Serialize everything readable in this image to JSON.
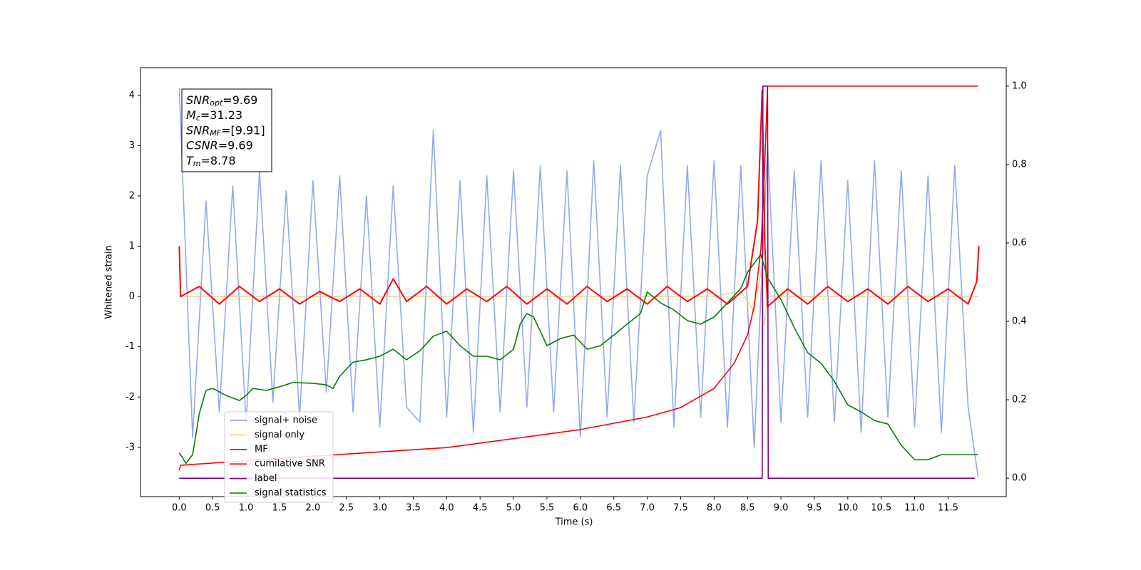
{
  "chart_data": {
    "type": "line",
    "xlabel": "Time (s)",
    "ylabel": "Whitened strain",
    "xlim": [
      -0.58,
      12.37
    ],
    "ylim": [
      -3.98,
      4.55
    ],
    "y2lim": [
      -0.047,
      1.047
    ],
    "xticks": [
      {
        "value": 0,
        "label": "0.0"
      },
      0.5,
      {
        "value": 1,
        "label": "1.0"
      },
      1.5,
      {
        "value": 2,
        "label": "2.0"
      },
      2.5,
      {
        "value": 3,
        "label": "3.0"
      },
      3.5,
      {
        "value": 4,
        "label": "4.0"
      },
      4.5,
      {
        "value": 5,
        "label": "5.0"
      },
      5.5,
      {
        "value": 6,
        "label": "6.0"
      },
      6.5,
      {
        "value": 7,
        "label": "7.0"
      },
      7.5,
      {
        "value": 8,
        "label": "8.0"
      },
      8.5,
      {
        "value": 9,
        "label": "9.0"
      },
      9.5,
      {
        "value": 10,
        "label": "10.0"
      },
      10.5,
      {
        "value": 11,
        "label": "11.0"
      },
      11.5
    ],
    "yticks": [
      -3,
      -2,
      -1,
      0,
      1,
      2,
      3,
      4
    ],
    "y2ticks": [
      {
        "value": 0,
        "label": "0.0"
      },
      0.2,
      0.4,
      0.6,
      0.8,
      {
        "value": 1,
        "label": "1.0"
      }
    ],
    "annotation": [
      {
        "main": "SNR",
        "sub": "opt",
        "rest": "=9.69"
      },
      {
        "main": "M",
        "sub": "c",
        "rest": "=31.23"
      },
      {
        "main": "SNR",
        "sub": "MF",
        "rest": "=[9.91]"
      },
      {
        "main": "CSNR",
        "rest": "=9.69"
      },
      {
        "main": "T",
        "sub": "m",
        "rest": "=8.78"
      }
    ],
    "series": [
      {
        "name": "signal+ noise",
        "color": "#7893e8",
        "x": [
          0,
          0.2,
          0.4,
          0.6,
          0.8,
          1.0,
          1.2,
          1.4,
          1.6,
          1.8,
          2.0,
          2.2,
          2.4,
          2.6,
          2.8,
          3.0,
          3.2,
          3.4,
          3.6,
          3.8,
          4.0,
          4.2,
          4.4,
          4.6,
          4.8,
          5.0,
          5.2,
          5.4,
          5.6,
          5.8,
          6.0,
          6.2,
          6.4,
          6.6,
          6.8,
          7.0,
          7.2,
          7.4,
          7.6,
          7.8,
          8.0,
          8.2,
          8.4,
          8.6,
          8.8,
          9.0,
          9.2,
          9.4,
          9.6,
          9.8,
          10.0,
          10.2,
          10.4,
          10.6,
          10.8,
          11.0,
          11.2,
          11.4,
          11.6,
          11.8,
          11.95
        ],
        "values": [
          4.15,
          -2.8,
          1.9,
          -2.3,
          2.2,
          -2.5,
          2.5,
          -2.1,
          2.1,
          -2.4,
          2.3,
          -1.9,
          2.4,
          -2.3,
          2.0,
          -2.6,
          2.2,
          -2.2,
          -2.5,
          3.3,
          -2.4,
          2.3,
          -2.7,
          2.4,
          -2.3,
          2.5,
          -2.2,
          2.6,
          -2.3,
          2.5,
          -2.8,
          2.7,
          -2.4,
          2.6,
          -2.5,
          2.4,
          3.3,
          -2.6,
          2.6,
          -2.4,
          2.7,
          -2.6,
          2.6,
          -3.0,
          3.0,
          -2.5,
          2.5,
          -2.4,
          2.7,
          -2.5,
          2.3,
          -2.7,
          2.7,
          -2.4,
          2.5,
          -2.6,
          2.4,
          -2.7,
          2.6,
          -2.2,
          -3.6
        ]
      },
      {
        "name": "signal only",
        "color": "#f5c97a",
        "x": [
          0,
          8.0,
          8.4,
          8.6,
          8.7,
          8.75,
          8.8,
          11.95
        ],
        "values": [
          0,
          0,
          0.1,
          -0.3,
          0.5,
          -0.6,
          0,
          0
        ]
      },
      {
        "name": "MF",
        "color": "#ff0000",
        "x": [
          0,
          0.02,
          0.3,
          0.6,
          0.9,
          1.2,
          1.5,
          1.8,
          2.1,
          2.4,
          2.7,
          3.0,
          3.2,
          3.4,
          3.7,
          4.0,
          4.3,
          4.6,
          4.9,
          5.2,
          5.5,
          5.8,
          6.1,
          6.4,
          6.7,
          7.0,
          7.3,
          7.6,
          7.9,
          8.2,
          8.5,
          8.65,
          8.72,
          8.76,
          8.8,
          9.1,
          9.4,
          9.7,
          10.0,
          10.3,
          10.6,
          10.9,
          11.2,
          11.5,
          11.8,
          11.93,
          11.96
        ],
        "values": [
          1.0,
          0.0,
          0.2,
          -0.15,
          0.2,
          -0.1,
          0.15,
          -0.15,
          0.1,
          -0.1,
          0.15,
          -0.15,
          0.35,
          -0.1,
          0.2,
          -0.15,
          0.15,
          -0.1,
          0.2,
          -0.15,
          0.15,
          -0.15,
          0.2,
          -0.1,
          0.15,
          -0.15,
          0.2,
          -0.1,
          0.15,
          -0.15,
          0.2,
          1.5,
          4.1,
          1.0,
          -0.2,
          0.15,
          -0.15,
          0.2,
          -0.1,
          0.15,
          -0.15,
          0.2,
          -0.1,
          0.15,
          -0.15,
          0.3,
          1.0
        ]
      },
      {
        "name": "cumilative SNR",
        "color": "#ff0000",
        "axis": "y2",
        "x": [
          0,
          0.02,
          2,
          4,
          6,
          7,
          7.5,
          8,
          8.3,
          8.5,
          8.6,
          8.7,
          8.75,
          8.8,
          11.95
        ],
        "values": [
          0.02,
          0.033,
          0.056,
          0.078,
          0.124,
          0.156,
          0.18,
          0.229,
          0.293,
          0.365,
          0.438,
          0.584,
          0.765,
          1.0,
          1.0
        ]
      },
      {
        "name": "label",
        "color": "#800080",
        "axis": "y2",
        "x": [
          0,
          8.72,
          8.73,
          8.8,
          8.81,
          11.9
        ],
        "values": [
          0,
          0,
          1,
          1,
          0,
          0
        ]
      },
      {
        "name": "signal statistics",
        "color": "#008000",
        "axis": "y2",
        "x": [
          0,
          0.1,
          0.2,
          0.3,
          0.4,
          0.5,
          0.7,
          0.9,
          1.0,
          1.1,
          1.3,
          1.5,
          1.7,
          2.0,
          2.2,
          2.3,
          2.4,
          2.6,
          2.8,
          3.0,
          3.2,
          3.4,
          3.6,
          3.8,
          4.0,
          4.2,
          4.4,
          4.6,
          4.8,
          5.0,
          5.1,
          5.2,
          5.3,
          5.4,
          5.5,
          5.7,
          5.9,
          6.1,
          6.3,
          6.5,
          6.7,
          6.9,
          7.0,
          7.2,
          7.4,
          7.6,
          7.8,
          8.0,
          8.2,
          8.4,
          8.5,
          8.7,
          8.8,
          9.0,
          9.2,
          9.4,
          9.6,
          9.8,
          10.0,
          10.2,
          10.4,
          10.6,
          10.8,
          11.0,
          11.2,
          11.4,
          11.7,
          11.95
        ],
        "values": [
          0.065,
          0.038,
          0.06,
          0.165,
          0.224,
          0.229,
          0.211,
          0.198,
          0.211,
          0.229,
          0.224,
          0.233,
          0.244,
          0.242,
          0.238,
          0.229,
          0.26,
          0.296,
          0.302,
          0.311,
          0.329,
          0.302,
          0.325,
          0.362,
          0.375,
          0.338,
          0.311,
          0.311,
          0.302,
          0.329,
          0.393,
          0.42,
          0.411,
          0.375,
          0.338,
          0.356,
          0.365,
          0.329,
          0.338,
          0.365,
          0.393,
          0.42,
          0.475,
          0.447,
          0.429,
          0.402,
          0.393,
          0.411,
          0.447,
          0.484,
          0.525,
          0.571,
          0.511,
          0.456,
          0.384,
          0.32,
          0.293,
          0.247,
          0.187,
          0.169,
          0.147,
          0.138,
          0.084,
          0.047,
          0.047,
          0.06,
          0.06,
          0.06
        ]
      }
    ]
  }
}
